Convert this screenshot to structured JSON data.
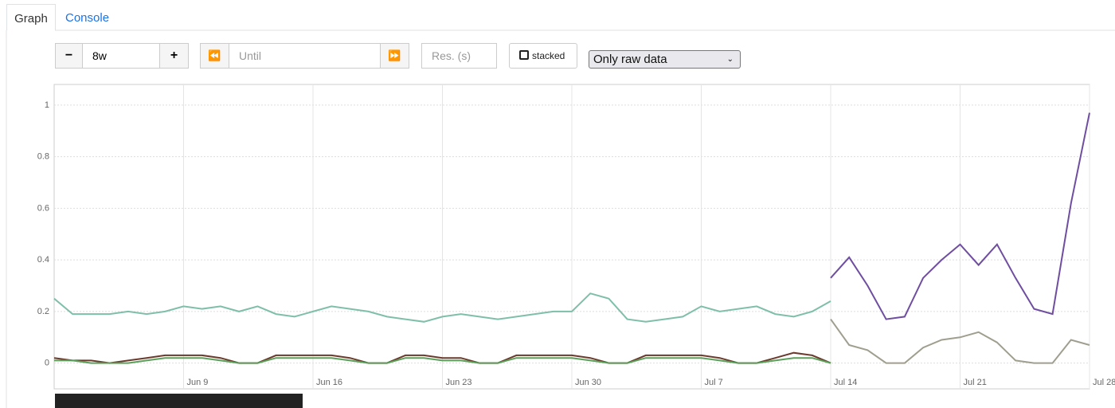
{
  "tabs": [
    "Graph",
    "Console"
  ],
  "controls": {
    "range": "8w",
    "until_placeholder": "Until",
    "resolution_placeholder": "Res. (s)",
    "stacked": "stacked",
    "select": "Only raw data"
  },
  "chart_data": {
    "type": "line",
    "x": [
      "Jun 2",
      "Jun 3",
      "Jun 4",
      "Jun 5",
      "Jun 6",
      "Jun 7",
      "Jun 8",
      "Jun 9",
      "Jun 10",
      "Jun 11",
      "Jun 12",
      "Jun 13",
      "Jun 14",
      "Jun 15",
      "Jun 16",
      "Jun 17",
      "Jun 18",
      "Jun 19",
      "Jun 20",
      "Jun 21",
      "Jun 22",
      "Jun 23",
      "Jun 24",
      "Jun 25",
      "Jun 26",
      "Jun 27",
      "Jun 28",
      "Jun 29",
      "Jun 30",
      "Jul 1",
      "Jul 2",
      "Jul 3",
      "Jul 4",
      "Jul 5",
      "Jul 6",
      "Jul 7",
      "Jul 8",
      "Jul 9",
      "Jul 10",
      "Jul 11",
      "Jul 12",
      "Jul 13",
      "Jul 14",
      "Jul 15",
      "Jul 16",
      "Jul 17",
      "Jul 18",
      "Jul 19",
      "Jul 20",
      "Jul 21",
      "Jul 22",
      "Jul 23",
      "Jul 24",
      "Jul 25",
      "Jul 26",
      "Jul 27",
      "Jul 28"
    ],
    "xticks": [
      "Jun 9",
      "Jun 16",
      "Jun 23",
      "Jun 30",
      "Jul 7",
      "Jul 14",
      "Jul 21",
      "Jul 28"
    ],
    "ylim": [
      -0.1,
      1.08
    ],
    "yticks": [
      0,
      0.2,
      0.4,
      0.6,
      0.8,
      1
    ],
    "grid": true,
    "series": [
      {
        "color": "#7fbfaa",
        "values": [
          0.25,
          0.19,
          0.19,
          0.19,
          0.2,
          0.19,
          0.2,
          0.22,
          0.21,
          0.22,
          0.2,
          0.22,
          0.19,
          0.18,
          0.2,
          0.22,
          0.21,
          0.2,
          0.18,
          0.17,
          0.16,
          0.18,
          0.19,
          0.18,
          0.17,
          0.18,
          0.19,
          0.2,
          0.2,
          0.27,
          0.25,
          0.17,
          0.16,
          0.17,
          0.18,
          0.22,
          0.2,
          0.21,
          0.22,
          0.19,
          0.18,
          0.2,
          0.24,
          null,
          null,
          null,
          null,
          null,
          null,
          null,
          null,
          null,
          null,
          null,
          null,
          null,
          null
        ]
      },
      {
        "color": "#6f4da0",
        "values": [
          null,
          null,
          null,
          null,
          null,
          null,
          null,
          null,
          null,
          null,
          null,
          null,
          null,
          null,
          null,
          null,
          null,
          null,
          null,
          null,
          null,
          null,
          null,
          null,
          null,
          null,
          null,
          null,
          null,
          null,
          null,
          null,
          null,
          null,
          null,
          null,
          null,
          null,
          null,
          null,
          null,
          null,
          0.33,
          0.41,
          0.3,
          0.17,
          0.18,
          0.33,
          0.4,
          0.46,
          0.38,
          0.46,
          0.33,
          0.21,
          0.19,
          0.62,
          0.97
        ]
      },
      {
        "color": "#a09e8e",
        "values": [
          null,
          null,
          null,
          null,
          null,
          null,
          null,
          null,
          null,
          null,
          null,
          null,
          null,
          null,
          null,
          null,
          null,
          null,
          null,
          null,
          null,
          null,
          null,
          null,
          null,
          null,
          null,
          null,
          null,
          null,
          null,
          null,
          null,
          null,
          null,
          null,
          null,
          null,
          null,
          null,
          null,
          null,
          0.17,
          0.07,
          0.05,
          0,
          0,
          0.06,
          0.09,
          0.1,
          0.12,
          0.08,
          0.01,
          0,
          0,
          0.09,
          0.07
        ]
      },
      {
        "color": "#6b3a2c",
        "values": [
          0.02,
          0.01,
          0.01,
          0,
          0.01,
          0.02,
          0.03,
          0.03,
          0.03,
          0.02,
          0,
          0,
          0.03,
          0.03,
          0.03,
          0.03,
          0.02,
          0,
          0,
          0.03,
          0.03,
          0.02,
          0.02,
          0,
          0,
          0.03,
          0.03,
          0.03,
          0.03,
          0.02,
          0,
          0,
          0.03,
          0.03,
          0.03,
          0.03,
          0.02,
          0,
          0,
          0.02,
          0.04,
          0.03,
          0,
          null,
          null,
          null,
          null,
          null,
          null,
          null,
          null,
          null,
          null,
          null,
          null,
          null,
          null
        ]
      },
      {
        "color": "#5aa05a",
        "values": [
          0.01,
          0.01,
          0,
          0,
          0,
          0.01,
          0.02,
          0.02,
          0.02,
          0.01,
          0,
          0,
          0.02,
          0.02,
          0.02,
          0.02,
          0.01,
          0,
          0,
          0.02,
          0.02,
          0.01,
          0.01,
          0,
          0,
          0.02,
          0.02,
          0.02,
          0.02,
          0.01,
          0,
          0,
          0.02,
          0.02,
          0.02,
          0.02,
          0.01,
          0,
          0,
          0.01,
          0.02,
          0.02,
          0,
          null,
          null,
          null,
          null,
          null,
          null,
          null,
          null,
          null,
          null,
          null,
          null,
          null,
          null
        ]
      }
    ]
  }
}
